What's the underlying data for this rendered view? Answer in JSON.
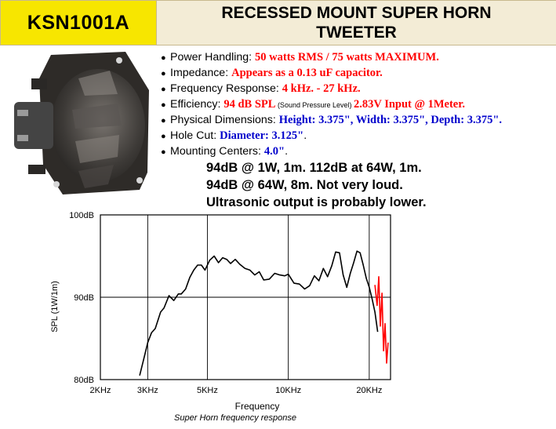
{
  "header": {
    "model": "KSN1001A",
    "title_line1": "RECESSED MOUNT SUPER HORN",
    "title_line2": "TWEETER"
  },
  "specs": [
    {
      "label": "Power Handling: ",
      "value": "50 watts RMS / 75 watts MAXIMUM",
      "suffix": "."
    },
    {
      "label": "Impedance: ",
      "value": "Appears as a 0.13 uF capacitor."
    },
    {
      "label": "Frequency Response: ",
      "value": "4 kHz. - 27 kHz."
    },
    {
      "label": "Efficiency: ",
      "value": "94 dB SPL",
      "note": " (Sound Pressure Level) ",
      "value2": "2.83V Input @ 1Meter."
    },
    {
      "label": "Physical Dimensions: ",
      "value": "Height: 3.375\", Width: 3.375\", Depth: 3.375\"."
    },
    {
      "label": "Hole Cut: ",
      "value": "Diameter: 3.125\"",
      "suffix": "."
    },
    {
      "label": "Mounting Centers: ",
      "value": "4.0\"",
      "suffix": "."
    }
  ],
  "notes": [
    "94dB @ 1W, 1m. 112dB at 64W, 1m.",
    "94dB @ 64W, 8m. Not very loud.",
    "Ultrasonic output is probably lower."
  ],
  "colors": {
    "model_bg": "#f7e600",
    "title_bg": "#f3ecd6",
    "value_red": "#ff0000",
    "value_blue": "#0000cc",
    "annotation_red": "#ff0000"
  },
  "chart_data": {
    "type": "line",
    "title": "Super Horn frequency response",
    "xlabel": "Frequency",
    "ylabel": "SPL (1W/1m)",
    "x_scale": "log",
    "xlim": [
      2000,
      24000
    ],
    "ylim": [
      80,
      100
    ],
    "x_ticks": [
      {
        "value": 2000,
        "label": "2KHz"
      },
      {
        "value": 3000,
        "label": "3KHz"
      },
      {
        "value": 5000,
        "label": "5KHz"
      },
      {
        "value": 10000,
        "label": "10KHz"
      },
      {
        "value": 20000,
        "label": "20KHz"
      }
    ],
    "y_ticks": [
      {
        "value": 80,
        "label": "80dB"
      },
      {
        "value": 90,
        "label": "90dB"
      },
      {
        "value": 100,
        "label": "100dB"
      }
    ],
    "grid": true,
    "series": [
      {
        "x": [
          2800,
          2900,
          3000,
          3100,
          3200,
          3350,
          3450,
          3600,
          3750,
          3900,
          4000,
          4150,
          4300,
          4450,
          4600,
          4750,
          4900,
          5100,
          5300,
          5500,
          5700,
          5900,
          6100,
          6350,
          6600,
          6900,
          7200,
          7500,
          7800,
          8100,
          8500,
          8900,
          9300,
          9700,
          10000,
          10500,
          11000,
          11500,
          12000,
          12500,
          13000,
          13500,
          14000,
          14500,
          15000,
          15500,
          16000,
          16500,
          17000,
          17500,
          18000,
          18500,
          19000,
          19500,
          20000,
          20500,
          21000,
          21500
        ],
        "y": [
          80.5,
          82.5,
          84.5,
          85.7,
          86.2,
          88.2,
          88.7,
          90.2,
          89.6,
          90.4,
          90.4,
          91.0,
          92.4,
          93.3,
          93.9,
          93.9,
          93.3,
          94.5,
          95.0,
          94.2,
          94.8,
          94.6,
          94.1,
          94.6,
          94.0,
          93.5,
          93.3,
          92.7,
          93.1,
          92.1,
          92.2,
          92.9,
          92.7,
          92.6,
          92.8,
          91.7,
          91.6,
          91.0,
          91.4,
          92.6,
          92.0,
          93.5,
          92.5,
          93.8,
          95.5,
          95.4,
          92.7,
          91.2,
          92.9,
          94.2,
          95.6,
          95.4,
          93.9,
          92.3,
          91.2,
          89.8,
          88.2,
          85.8
        ]
      },
      {
        "x": [
          21000,
          21400,
          21700,
          22000,
          22300,
          22600,
          22900,
          23200,
          23500
        ],
        "y": [
          91.5,
          89.0,
          92.5,
          86.5,
          90.5,
          83.5,
          86.8,
          82.0,
          84.5
        ]
      }
    ]
  }
}
